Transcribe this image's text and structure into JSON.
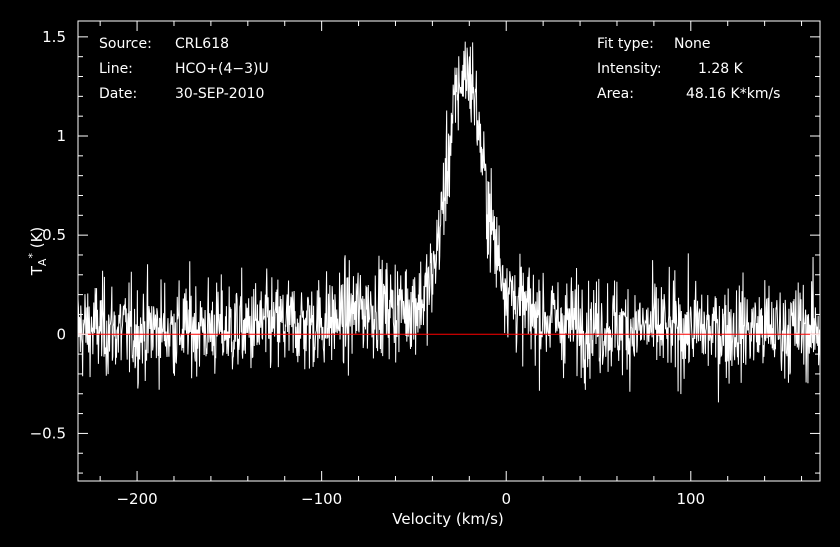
{
  "chart_data": {
    "type": "line",
    "title": "",
    "xlabel": "Velocity (km/s)",
    "ylabel": "T_A^* (K)",
    "xlim": [
      -232,
      170
    ],
    "ylim": [
      -0.74,
      1.58
    ],
    "x_ticks": [
      -200,
      -100,
      0,
      100
    ],
    "x_tick_labels": [
      "−200",
      "−100",
      "0",
      "100"
    ],
    "y_ticks": [
      -0.5,
      0,
      0.5,
      1,
      1.5
    ],
    "y_tick_labels": [
      "−0.5",
      "0",
      "0.5",
      "1",
      "1.5"
    ],
    "grid": false,
    "baseline": 0,
    "colors": {
      "background": "#000000",
      "spectrum": "#ffffff",
      "baseline": "#ff0000",
      "axes": "#ffffff"
    },
    "series": [
      {
        "values_note_excluded": true,
        "x": [
          -232,
          -220,
          -210,
          -200,
          -190,
          -180,
          -170,
          -160,
          -150,
          -140,
          -130,
          -120,
          -110,
          -100,
          -90,
          -80,
          -70,
          -60,
          -50,
          -45,
          -40,
          -35,
          -30,
          -27,
          -24,
          -21,
          -18,
          -15,
          -12,
          -9,
          -6,
          -3,
          0,
          5,
          10,
          20,
          30,
          40,
          50,
          60,
          70,
          80,
          90,
          100,
          110,
          120,
          130,
          140,
          150,
          160,
          170
        ],
        "y": [
          0.02,
          0.03,
          0.02,
          0.01,
          0.03,
          0.02,
          0.04,
          0.03,
          0.02,
          0.03,
          0.04,
          0.05,
          0.05,
          0.06,
          0.08,
          0.12,
          0.14,
          0.13,
          0.15,
          0.18,
          0.28,
          0.6,
          1.0,
          1.2,
          1.3,
          1.33,
          1.25,
          1.05,
          0.8,
          0.6,
          0.45,
          0.35,
          0.25,
          0.17,
          0.12,
          0.09,
          0.06,
          0.05,
          0.04,
          0.04,
          0.03,
          0.03,
          0.02,
          0.03,
          0.02,
          0.02,
          0.03,
          0.02,
          0.02,
          0.03,
          0.02
        ]
      }
    ]
  },
  "annotations": {
    "source_label": "Source:",
    "source_value": "CRL618",
    "line_label": "Line:",
    "line_value": "HCO+(4−3)U",
    "date_label": "Date:",
    "date_value": "30-SEP-2010",
    "fit_label": "Fit type:",
    "fit_value": "None",
    "intensity_label": "Intensity:",
    "intensity_value": "1.28 K",
    "area_label": "Area:",
    "area_value": "48.16 K*km/s"
  }
}
